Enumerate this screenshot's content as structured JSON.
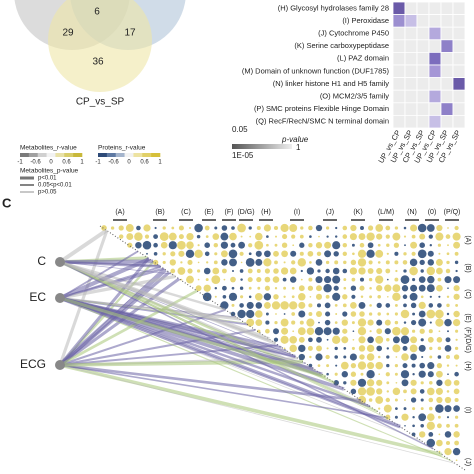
{
  "venn": {
    "counts": [
      "6",
      "29",
      "17",
      "36"
    ],
    "label": "CP_vs_SP"
  },
  "heatmap": {
    "rows": [
      "(H) Glycosyl hydrolases family 28",
      "(I) Peroxidase",
      "(J) Cytochrome P450",
      "(K) Serine carboxypeptidase",
      "(L) PAZ domain",
      "(M) Domain of unknown function (DUF1785)",
      "(N) linker histone H1 and H5 family",
      "(O) MCM2/3/5 family",
      "(P) SMC proteins Flexible Hinge Domain",
      "(Q) RecF/RecN/SMC N terminal domain"
    ],
    "columns": [
      "UP_vs_CP",
      "UP_vs_SP",
      "CP_vs_SP",
      "UP_vs_CP",
      "UP_vs_SP",
      "CP_vs_SP"
    ],
    "legend": {
      "title": "p-value",
      "top": "0.05",
      "low": "1E-05",
      "high": "1"
    }
  },
  "panel_c": {
    "label": "C",
    "metabolites_r": {
      "title": "Metabolites_r-value",
      "ticks": [
        "-1",
        "-0.6",
        "0",
        "0.6",
        "1"
      ]
    },
    "proteins_r": {
      "title": "Proteins_r-value",
      "ticks": [
        "-1",
        "-0.6",
        "0",
        "0.6",
        "1"
      ]
    },
    "metabolites_p": {
      "title": "Metabolites_p-value",
      "items": [
        "p<0.01",
        "0.05<p<0.01",
        "p>0.05"
      ]
    },
    "column_groups": [
      "(A)",
      "(B)",
      "(C)",
      "(E)",
      "(F)",
      "(D/G)",
      "(H)",
      "(I)",
      "(J)",
      "(K)",
      "(L/M)",
      "(N)",
      "(0)",
      "(P/Q)"
    ],
    "row_groups": [
      "(A)",
      "(B)",
      "(C)",
      "(E)",
      "(F)(D/G)",
      "(H)",
      "(I)",
      "(J)"
    ],
    "nodes": [
      "C",
      "EC",
      "ECG"
    ]
  }
}
